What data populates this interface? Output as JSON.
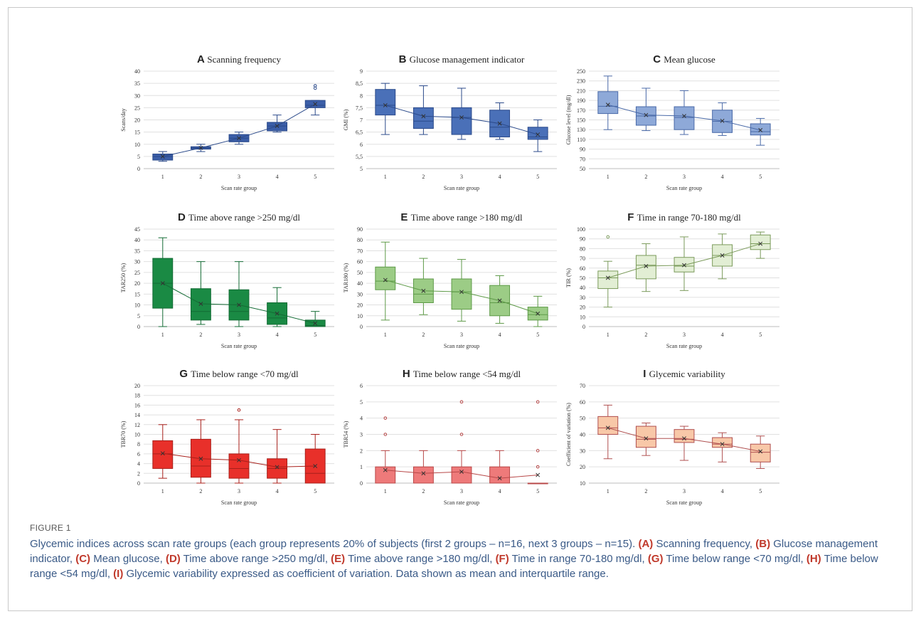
{
  "figure": {
    "label": "FIGURE 1",
    "caption": [
      {
        "t": "Glycemic indices across scan rate groups (each group represents 20% of subjects (first 2 groups – n=16, next 3 groups – n=15). "
      },
      {
        "b": "(A)"
      },
      {
        "t": " Scanning frequency, "
      },
      {
        "b": "(B)"
      },
      {
        "t": " Glucose management indicator, "
      },
      {
        "b": "(C)"
      },
      {
        "t": " Mean glucose, "
      },
      {
        "b": "(D)"
      },
      {
        "t": " Time above range >250 mg/dl, "
      },
      {
        "b": "(E)"
      },
      {
        "t": " Time above range >180 mg/dl, "
      },
      {
        "b": "(F)"
      },
      {
        "t": " Time in range 70-180 mg/dl, "
      },
      {
        "b": "(G)"
      },
      {
        "t": " Time below range <70 mg/dl, "
      },
      {
        "b": "(H)"
      },
      {
        "t": " Time below range <54 mg/dl, "
      },
      {
        "b": "(I)"
      },
      {
        "t": " Glycemic variability expressed as coefficient of variation. Data shown as mean and interquartile range."
      }
    ]
  },
  "chart_data": [
    {
      "type": "box",
      "letter": "A",
      "title": "Scanning frequency",
      "xlabel": "Scan rate group",
      "ylabel": "Scans/day",
      "categories": [
        "1",
        "2",
        "3",
        "4",
        "5"
      ],
      "ylim": [
        0,
        40
      ],
      "yticks": [
        0,
        5,
        10,
        15,
        20,
        25,
        30,
        35,
        40
      ],
      "color": "#3b5ea8",
      "stroke": "#2b4a8a",
      "boxes": [
        {
          "min": 3,
          "q1": 3.5,
          "median": 5,
          "q3": 6,
          "max": 7,
          "mean": 5,
          "outliers": []
        },
        {
          "min": 7,
          "q1": 8,
          "median": 8.5,
          "q3": 9,
          "max": 10,
          "mean": 8.5,
          "outliers": []
        },
        {
          "min": 10,
          "q1": 11,
          "median": 12.5,
          "q3": 14,
          "max": 15,
          "mean": 12.5,
          "outliers": []
        },
        {
          "min": 15,
          "q1": 15.5,
          "median": 17.5,
          "q3": 19,
          "max": 22,
          "mean": 17.5,
          "outliers": []
        },
        {
          "min": 22,
          "q1": 25,
          "median": 26,
          "q3": 28,
          "max": 28,
          "mean": 26.5,
          "outliers": [
            33,
            34
          ]
        }
      ]
    },
    {
      "type": "box",
      "letter": "B",
      "title": "Glucose management indicator",
      "xlabel": "Scan rate group",
      "ylabel": "GMI (%)",
      "categories": [
        "1",
        "2",
        "3",
        "4",
        "5"
      ],
      "ylim": [
        5,
        9
      ],
      "yticks": [
        5,
        5.5,
        6,
        6.5,
        7,
        7.5,
        8,
        8.5,
        9
      ],
      "ytick_labels": [
        "5",
        "5,5",
        "6",
        "6,5",
        "7",
        "7,5",
        "8",
        "8,5",
        "9"
      ],
      "color": "#4a70b8",
      "stroke": "#2b4a8a",
      "boxes": [
        {
          "min": 6.4,
          "q1": 7.2,
          "median": 7.6,
          "q3": 8.25,
          "max": 8.5,
          "mean": 7.6,
          "outliers": []
        },
        {
          "min": 6.4,
          "q1": 6.65,
          "median": 6.95,
          "q3": 7.5,
          "max": 8.4,
          "mean": 7.15,
          "outliers": []
        },
        {
          "min": 6.2,
          "q1": 6.4,
          "median": 7.1,
          "q3": 7.5,
          "max": 8.3,
          "mean": 7.1,
          "outliers": []
        },
        {
          "min": 6.2,
          "q1": 6.3,
          "median": 6.7,
          "q3": 7.4,
          "max": 7.7,
          "mean": 6.85,
          "outliers": []
        },
        {
          "min": 5.7,
          "q1": 6.2,
          "median": 6.3,
          "q3": 6.7,
          "max": 7.0,
          "mean": 6.4,
          "outliers": []
        }
      ]
    },
    {
      "type": "box",
      "letter": "C",
      "title": "Mean glucose",
      "xlabel": "Scan rate group",
      "ylabel": "Glucose level (mg/dl)",
      "categories": [
        "1",
        "2",
        "3",
        "4",
        "5"
      ],
      "ylim": [
        50,
        250
      ],
      "yticks": [
        50,
        70,
        90,
        110,
        130,
        150,
        170,
        190,
        210,
        230,
        250
      ],
      "color": "#8ea9d8",
      "stroke": "#4a6aa8",
      "boxes": [
        {
          "min": 130,
          "q1": 163,
          "median": 178,
          "q3": 208,
          "max": 240,
          "mean": 181,
          "outliers": []
        },
        {
          "min": 128,
          "q1": 139,
          "median": 158,
          "q3": 177,
          "max": 215,
          "mean": 160,
          "outliers": []
        },
        {
          "min": 120,
          "q1": 130,
          "median": 155,
          "q3": 177,
          "max": 210,
          "mean": 158,
          "outliers": []
        },
        {
          "min": 118,
          "q1": 124,
          "median": 147,
          "q3": 170,
          "max": 185,
          "mean": 148,
          "outliers": []
        },
        {
          "min": 98,
          "q1": 119,
          "median": 126,
          "q3": 142,
          "max": 153,
          "mean": 129,
          "outliers": []
        }
      ]
    },
    {
      "type": "box",
      "letter": "D",
      "title": "Time above range >250 mg/dl",
      "xlabel": "Scan rate group",
      "ylabel": "TAR250 (%)",
      "categories": [
        "1",
        "2",
        "3",
        "4",
        "5"
      ],
      "ylim": [
        0,
        45
      ],
      "yticks": [
        0,
        5,
        10,
        15,
        20,
        25,
        30,
        35,
        40,
        45
      ],
      "color": "#1a8a44",
      "stroke": "#136b34",
      "boxes": [
        {
          "min": 0,
          "q1": 8.5,
          "median": 20,
          "q3": 31.5,
          "max": 41,
          "mean": 20,
          "outliers": []
        },
        {
          "min": 1,
          "q1": 3,
          "median": 7,
          "q3": 17.5,
          "max": 30,
          "mean": 10.5,
          "outliers": []
        },
        {
          "min": 0,
          "q1": 3,
          "median": 7,
          "q3": 17,
          "max": 30,
          "mean": 10,
          "outliers": []
        },
        {
          "min": 0,
          "q1": 1,
          "median": 4,
          "q3": 11,
          "max": 18,
          "mean": 6,
          "outliers": []
        },
        {
          "min": 0,
          "q1": 0,
          "median": 0.5,
          "q3": 3,
          "max": 7,
          "mean": 1.5,
          "outliers": []
        }
      ]
    },
    {
      "type": "box",
      "letter": "E",
      "title": "Time above range >180 mg/dl",
      "xlabel": "Scan rate group",
      "ylabel": "TAR180 (%)",
      "categories": [
        "1",
        "2",
        "3",
        "4",
        "5"
      ],
      "ylim": [
        0,
        90
      ],
      "yticks": [
        0,
        10,
        20,
        30,
        40,
        50,
        60,
        70,
        80,
        90
      ],
      "color": "#9ccc86",
      "stroke": "#5e9a48",
      "boxes": [
        {
          "min": 6,
          "q1": 34,
          "median": 42,
          "q3": 55,
          "max": 78,
          "mean": 43,
          "outliers": []
        },
        {
          "min": 11,
          "q1": 22,
          "median": 30,
          "q3": 44,
          "max": 63,
          "mean": 33,
          "outliers": []
        },
        {
          "min": 5,
          "q1": 16,
          "median": 32,
          "q3": 44,
          "max": 62,
          "mean": 32,
          "outliers": []
        },
        {
          "min": 3,
          "q1": 10,
          "median": 22,
          "q3": 38,
          "max": 47,
          "mean": 24,
          "outliers": []
        },
        {
          "min": 0,
          "q1": 6,
          "median": 11,
          "q3": 18,
          "max": 28,
          "mean": 12,
          "outliers": []
        }
      ]
    },
    {
      "type": "box",
      "letter": "F",
      "title": "Time in range 70-180 mg/dl",
      "xlabel": "Scan rate group",
      "ylabel": "TIR (%)",
      "categories": [
        "1",
        "2",
        "3",
        "4",
        "5"
      ],
      "ylim": [
        0,
        100
      ],
      "yticks": [
        0,
        10,
        20,
        30,
        40,
        50,
        60,
        70,
        80,
        90,
        100
      ],
      "color": "#e2eed4",
      "stroke": "#7a9a5a",
      "boxes": [
        {
          "min": 20,
          "q1": 39,
          "median": 50,
          "q3": 57,
          "max": 67,
          "mean": 50,
          "outliers": [
            92
          ]
        },
        {
          "min": 36,
          "q1": 49,
          "median": 63,
          "q3": 73,
          "max": 85,
          "mean": 62,
          "outliers": []
        },
        {
          "min": 37,
          "q1": 56,
          "median": 62,
          "q3": 71,
          "max": 92,
          "mean": 63,
          "outliers": []
        },
        {
          "min": 49,
          "q1": 62,
          "median": 73,
          "q3": 84,
          "max": 95,
          "mean": 73,
          "outliers": []
        },
        {
          "min": 70,
          "q1": 79,
          "median": 85,
          "q3": 94,
          "max": 97,
          "mean": 85,
          "outliers": []
        }
      ]
    },
    {
      "type": "box",
      "letter": "G",
      "title": "Time below range <70 mg/dl",
      "xlabel": "Scan rate group",
      "ylabel": "TBR70 (%)",
      "categories": [
        "1",
        "2",
        "3",
        "4",
        "5"
      ],
      "ylim": [
        0,
        20
      ],
      "yticks": [
        0,
        2,
        4,
        6,
        8,
        10,
        12,
        14,
        16,
        18,
        20
      ],
      "color": "#e8302a",
      "stroke": "#a81f1a",
      "boxes": [
        {
          "min": 1,
          "q1": 3,
          "median": 6,
          "q3": 8.7,
          "max": 12,
          "mean": 6.1,
          "outliers": []
        },
        {
          "min": 0,
          "q1": 1.2,
          "median": 3.5,
          "q3": 9,
          "max": 13,
          "mean": 5,
          "outliers": []
        },
        {
          "min": 0,
          "q1": 1,
          "median": 3,
          "q3": 6,
          "max": 13,
          "mean": 4.7,
          "outliers": [
            15
          ]
        },
        {
          "min": 0,
          "q1": 1,
          "median": 3,
          "q3": 5,
          "max": 11,
          "mean": 3.3,
          "outliers": []
        },
        {
          "min": 0,
          "q1": 0,
          "median": 2,
          "q3": 7,
          "max": 10,
          "mean": 3.5,
          "outliers": []
        }
      ]
    },
    {
      "type": "box",
      "letter": "H",
      "title": "Time below range <54 mg/dl",
      "xlabel": "Scan rate group",
      "ylabel": "TBR54 (%)",
      "categories": [
        "1",
        "2",
        "3",
        "4",
        "5"
      ],
      "ylim": [
        0,
        6
      ],
      "yticks": [
        0,
        1,
        2,
        3,
        4,
        5,
        6
      ],
      "color": "#ee7a7a",
      "stroke": "#b84848",
      "boxes": [
        {
          "min": 0,
          "q1": 0,
          "median": 0,
          "q3": 1,
          "max": 2,
          "mean": 0.8,
          "outliers": [
            3,
            4
          ]
        },
        {
          "min": 0,
          "q1": 0,
          "median": 0,
          "q3": 1,
          "max": 2,
          "mean": 0.6,
          "outliers": []
        },
        {
          "min": 0,
          "q1": 0,
          "median": 0,
          "q3": 1,
          "max": 2,
          "mean": 0.7,
          "outliers": [
            3,
            5
          ]
        },
        {
          "min": 0,
          "q1": 0,
          "median": 0,
          "q3": 1,
          "max": 2,
          "mean": 0.3,
          "outliers": []
        },
        {
          "min": 0,
          "q1": 0,
          "median": 0,
          "q3": 0,
          "max": 0,
          "mean": 0.5,
          "outliers": [
            1,
            2,
            5
          ]
        }
      ]
    },
    {
      "type": "box",
      "letter": "I",
      "title": "Glycemic variability",
      "xlabel": "Scan rate group",
      "ylabel": "Coefficient of variation (%)",
      "categories": [
        "1",
        "2",
        "3",
        "4",
        "5"
      ],
      "ylim": [
        10,
        70
      ],
      "yticks": [
        10,
        20,
        30,
        40,
        50,
        60,
        70
      ],
      "color": "#f8c8a8",
      "stroke": "#b05050",
      "boxes": [
        {
          "min": 25,
          "q1": 40,
          "median": 44,
          "q3": 51,
          "max": 58,
          "mean": 44,
          "outliers": []
        },
        {
          "min": 27,
          "q1": 32,
          "median": 37,
          "q3": 45,
          "max": 47,
          "mean": 37.5,
          "outliers": []
        },
        {
          "min": 24,
          "q1": 35,
          "median": 37,
          "q3": 43,
          "max": 45,
          "mean": 37.5,
          "outliers": []
        },
        {
          "min": 23,
          "q1": 32,
          "median": 34,
          "q3": 38,
          "max": 41,
          "mean": 34,
          "outliers": []
        },
        {
          "min": 19,
          "q1": 23,
          "median": 29,
          "q3": 34,
          "max": 39,
          "mean": 29.5,
          "outliers": []
        }
      ]
    }
  ]
}
